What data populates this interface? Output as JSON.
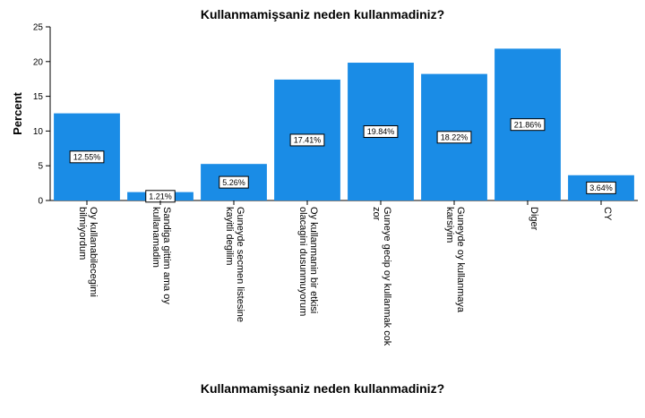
{
  "chart_data": {
    "type": "bar",
    "title": "Kullanmamişsaniz neden kullanmadiniz?",
    "xlabel": "Kullanmamişsaniz neden kullanmadiniz?",
    "ylabel": "Percent",
    "ylim": [
      0,
      25
    ],
    "yticks": [
      "0",
      "5",
      "10",
      "15",
      "20",
      "25"
    ],
    "grid": false,
    "bar_color": "#1a8ce6",
    "categories": [
      [
        "Oy kullanabilecegimi",
        "bilmiyordum"
      ],
      [
        "Sandiga gittim ama oy",
        "kullanamadim"
      ],
      [
        "Guneyde secmen listesine",
        "kayitli degilim"
      ],
      [
        "Oy kullanmanin bir etkisi",
        "olacagini dusunmuyorum"
      ],
      [
        "Guneye gecip oy kullanmak cok",
        "zor"
      ],
      [
        "Guneyde oy kullanmaya",
        "karsiyim"
      ],
      [
        "Diger"
      ],
      [
        "CY"
      ]
    ],
    "values": [
      12.55,
      1.21,
      5.26,
      17.41,
      19.84,
      18.22,
      21.86,
      3.64
    ],
    "data_labels": [
      "12.55%",
      "1.21%",
      "5.26%",
      "17.41%",
      "19.84%",
      "18.22%",
      "21.86%",
      "3.64%"
    ]
  }
}
